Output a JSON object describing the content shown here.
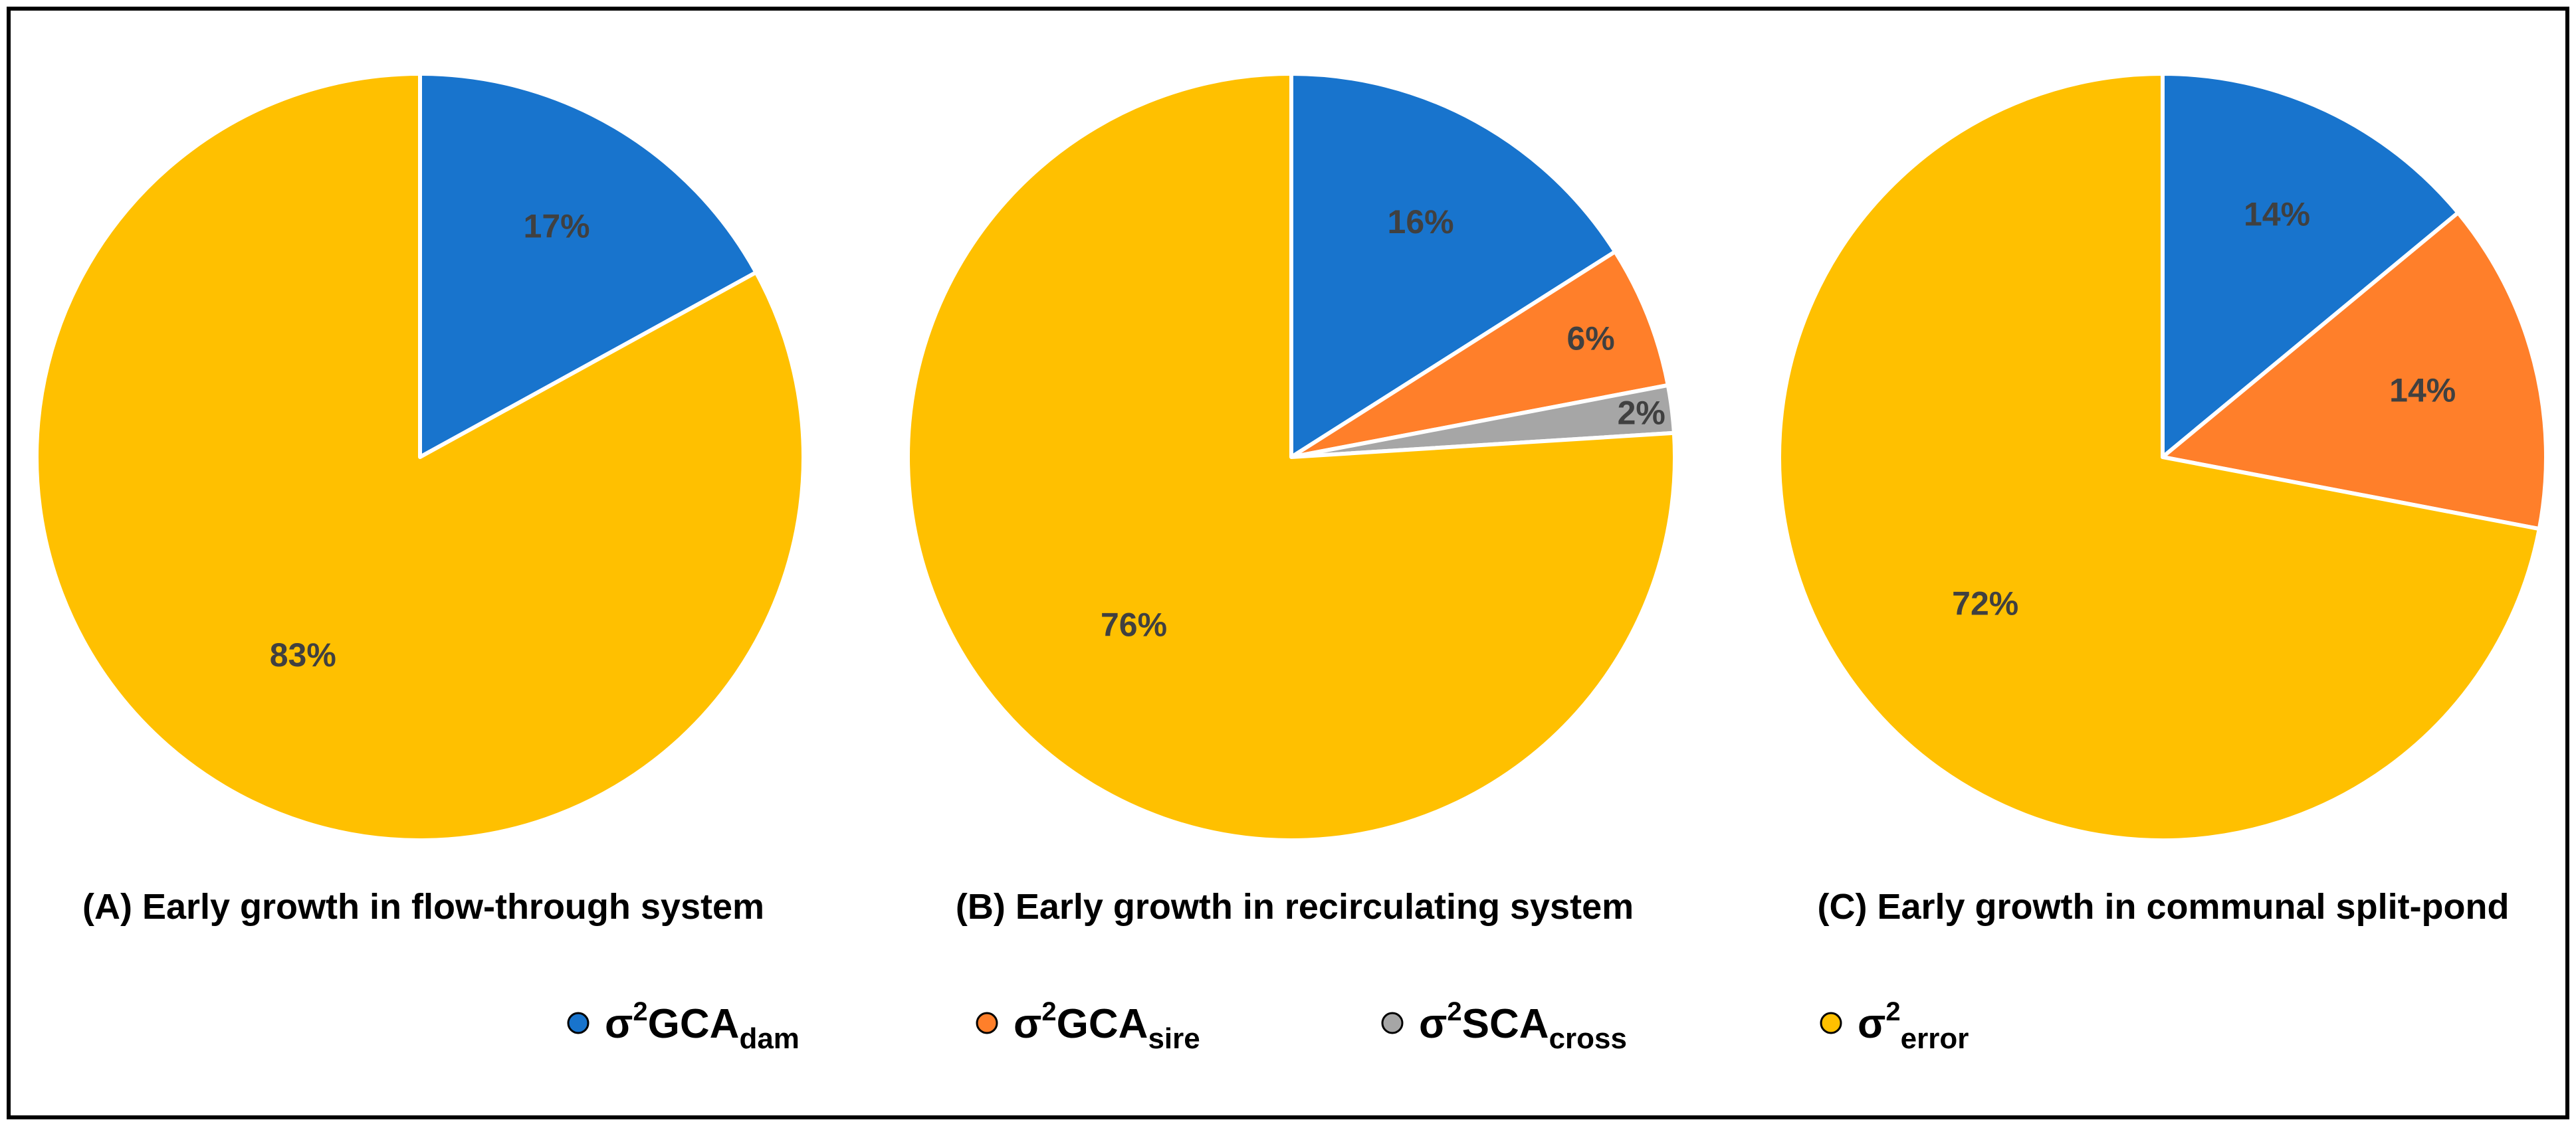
{
  "chart_data": [
    {
      "type": "pie",
      "title": "(A) Early growth in flow-through system",
      "slices": [
        {
          "series": "dam",
          "value": 17,
          "label": "17%"
        },
        {
          "series": "error",
          "value": 83,
          "label": "83%"
        }
      ]
    },
    {
      "type": "pie",
      "title": "(B) Early growth in recirculating system",
      "slices": [
        {
          "series": "dam",
          "value": 16,
          "label": "16%"
        },
        {
          "series": "sire",
          "value": 6,
          "label": "6%"
        },
        {
          "series": "cross",
          "value": 2,
          "label": "2%"
        },
        {
          "series": "error",
          "value": 76,
          "label": "76%"
        }
      ]
    },
    {
      "type": "pie",
      "title": "(C) Early growth in communal split-pond",
      "slices": [
        {
          "series": "dam",
          "value": 14,
          "label": "14%"
        },
        {
          "series": "sire",
          "value": 14,
          "label": "14%"
        },
        {
          "series": "error",
          "value": 72,
          "label": "72%"
        }
      ]
    }
  ],
  "legend": [
    {
      "key": "dam",
      "prefix": "σ",
      "sup": "2",
      "main": "GCA",
      "sub": "dam",
      "color": "#1874CD"
    },
    {
      "key": "sire",
      "prefix": "σ",
      "sup": "2",
      "main": "GCA",
      "sub": "sire",
      "color": "#FF7F2A"
    },
    {
      "key": "cross",
      "prefix": "σ",
      "sup": "2",
      "main": "SCA",
      "sub": "cross",
      "color": "#A6A6A6"
    },
    {
      "key": "error",
      "prefix": "σ",
      "sup": "2",
      "main": "",
      "sub": "error",
      "color": "#FFC000"
    }
  ]
}
